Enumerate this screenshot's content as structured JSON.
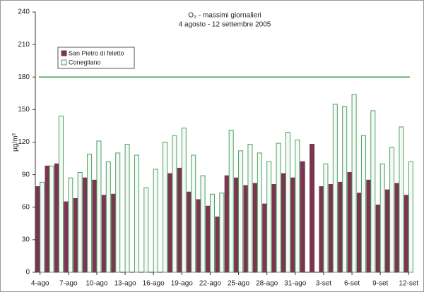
{
  "chart_data": {
    "type": "bar",
    "title": "O₃ - massimi giornalieri",
    "subtitle": "4 agosto - 12 settembre 2005",
    "y_label": "µg/m³",
    "categories": [
      "4-ago",
      null,
      null,
      "7-ago",
      null,
      null,
      "10-ago",
      null,
      null,
      "13-ago",
      null,
      null,
      "16-ago",
      null,
      null,
      "19-ago",
      null,
      null,
      "22-ago",
      null,
      null,
      "25-ago",
      null,
      null,
      "28-ago",
      null,
      null,
      "31-ago",
      null,
      null,
      "3-set",
      null,
      null,
      "6-set",
      null,
      null,
      "9-set",
      null,
      null,
      "12-set"
    ],
    "series": [
      {
        "name": "San Pietro di feletto",
        "color": "#7a3550",
        "values": [
          79,
          98,
          100,
          65,
          68,
          87,
          85,
          71,
          72,
          null,
          null,
          null,
          null,
          null,
          91,
          96,
          74,
          67,
          61,
          51,
          89,
          87,
          80,
          82,
          63,
          81,
          91,
          87,
          102,
          118,
          79,
          81,
          83,
          92,
          73,
          85,
          62,
          76,
          82,
          71
        ]
      },
      {
        "name": "Conegliano",
        "color": "#4fa064",
        "values": [
          83,
          98,
          144,
          87,
          92,
          109,
          121,
          102,
          110,
          118,
          108,
          78,
          95,
          120,
          126,
          133,
          108,
          89,
          72,
          73,
          131,
          112,
          118,
          110,
          102,
          119,
          129,
          122,
          null,
          null,
          100,
          155,
          153,
          164,
          126,
          149,
          100,
          115,
          134,
          102
        ]
      }
    ],
    "threshold": 180,
    "threshold_color": "#3aa04a",
    "ylim": [
      0,
      240
    ],
    "yticks": [
      0,
      30,
      60,
      90,
      120,
      150,
      180,
      210,
      240
    ],
    "legend": "upper-left"
  }
}
